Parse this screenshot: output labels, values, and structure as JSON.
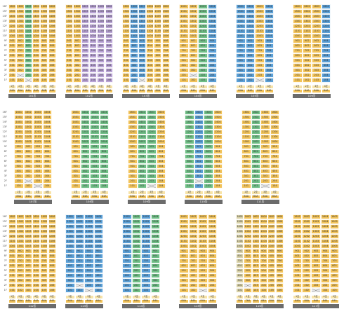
{
  "floor_labels": [
    "16F",
    "15F",
    "14F",
    "13F",
    "12F",
    "11F",
    "10F",
    "9F",
    "8F",
    "7F",
    "6F",
    "5F",
    "4F",
    "3F",
    "2F",
    "1F"
  ],
  "colors": {
    "y": "#f2c35a",
    "p": "#b9a3d6",
    "g": "#6fbf86",
    "b": "#5a9fd6",
    "l": "#d9d2a8",
    "w": "#f4f4f4",
    "x": "#e6e6e6"
  },
  "buildings": [
    {
      "name": "101동",
      "floors": 16,
      "lines": 6,
      "colors": [
        "y",
        "y",
        "g",
        "y",
        "y",
        "y"
      ],
      "summary": [
        "1호",
        "2호",
        "3호",
        "4호",
        "5호",
        "6호",
        "84A",
        "84A",
        "84A",
        "84A",
        "84B",
        "84B"
      ]
    },
    {
      "name": "102동",
      "floors": 16,
      "lines": 6,
      "colors": [
        "y",
        "y",
        "p",
        "p",
        "p",
        "p"
      ],
      "summary": [
        "1호",
        "2호",
        "3호",
        "4호",
        "5호",
        "6호",
        "84A",
        "84A",
        "84A",
        "84A",
        "84A",
        "84A"
      ]
    },
    {
      "name": "103동",
      "floors": 16,
      "lines": 6,
      "colors": [
        "y",
        "b",
        "b",
        "y",
        "y",
        "y"
      ],
      "summary": [
        "1호",
        "2호",
        "3호",
        "4호",
        "5호",
        "6호",
        "84A",
        "84A",
        "84A",
        "84A",
        "84A",
        "84A"
      ]
    },
    {
      "name": "104동",
      "floors": 16,
      "lines": 4,
      "colors": [
        "y",
        "y",
        "g",
        "b"
      ],
      "summary": [
        "1호",
        "2호",
        "3호",
        "4호",
        "84A",
        "84A",
        "84A",
        "84A"
      ]
    },
    {
      "name": "105동",
      "floors": 16,
      "lines": 4,
      "colors": [
        "b",
        "b",
        "y",
        "b"
      ],
      "summary": [
        "1호",
        "2호",
        "3호",
        "4호",
        "84A",
        "84A",
        "84A",
        "84A"
      ]
    },
    {
      "name": "106동",
      "floors": 16,
      "lines": 4,
      "colors": [
        "y",
        "y",
        "y",
        "b"
      ],
      "summary": [
        "1호",
        "2호",
        "3호",
        "4호",
        "84A",
        "84A",
        "84A",
        "84A"
      ]
    },
    {
      "name": "107동",
      "floors": 16,
      "lines": 4,
      "colors": [
        "y",
        "y",
        "y",
        "y"
      ],
      "summary": [
        "1호",
        "2호",
        "3호",
        "4호",
        "84A",
        "84A",
        "84A",
        "84A"
      ]
    },
    {
      "name": "108동",
      "floors": 16,
      "lines": 4,
      "colors": [
        "y",
        "g",
        "g",
        "g"
      ],
      "summary": [
        "1호",
        "2호",
        "3호",
        "4호",
        "84A",
        "84A",
        "84A",
        "84A"
      ]
    },
    {
      "name": "109동",
      "floors": 16,
      "lines": 4,
      "colors": [
        "y",
        "g",
        "g",
        "y"
      ],
      "summary": [
        "1호",
        "2호",
        "3호",
        "4호",
        "84A",
        "84A",
        "84A",
        "84A"
      ]
    },
    {
      "name": "110동",
      "floors": 16,
      "lines": 4,
      "colors": [
        "g",
        "b",
        "g",
        "y"
      ],
      "summary": [
        "1호",
        "2호",
        "3호",
        "4호",
        "84A",
        "84A",
        "84A",
        "84A"
      ]
    },
    {
      "name": "111동",
      "floors": 16,
      "lines": 4,
      "colors": [
        "y",
        "g",
        "y",
        "y"
      ],
      "summary": [
        "1호",
        "2호",
        "3호",
        "4호",
        "84A",
        "84A",
        "84A",
        "84A"
      ]
    },
    {
      "name": "112동",
      "floors": 16,
      "lines": 6,
      "colors": [
        "y",
        "y",
        "y",
        "y",
        "y",
        "y"
      ],
      "summary": [
        "1호",
        "2호",
        "3호",
        "4호",
        "5호",
        "6호",
        "84A",
        "84A",
        "84A",
        "84A",
        "84A",
        "84A"
      ]
    },
    {
      "name": "113동",
      "floors": 16,
      "lines": 4,
      "colors": [
        "b",
        "b",
        "b",
        "b"
      ],
      "summary": [
        "1호",
        "2호",
        "3호",
        "4호",
        "84A",
        "84A",
        "84A",
        "84A"
      ]
    },
    {
      "name": "114동",
      "floors": 16,
      "lines": 4,
      "colors": [
        "b",
        "g",
        "b",
        "g"
      ],
      "summary": [
        "1호",
        "2호",
        "3호",
        "4호",
        "84A",
        "84A",
        "84A",
        "84A"
      ]
    },
    {
      "name": "115동",
      "floors": 16,
      "lines": 4,
      "colors": [
        "y",
        "y",
        "y",
        "y"
      ],
      "summary": [
        "1호",
        "2호",
        "3호",
        "4호",
        "84A",
        "84A",
        "84A",
        "84A"
      ]
    },
    {
      "name": "116동",
      "floors": 16,
      "lines": 6,
      "colors": [
        "l",
        "y",
        "y",
        "y",
        "y",
        "y"
      ],
      "summary": [
        "1호",
        "2호",
        "3호",
        "4호",
        "5호",
        "6호",
        "76A",
        "76A",
        "84A",
        "84A",
        "84A",
        "84A"
      ]
    },
    {
      "name": "117동",
      "floors": 16,
      "lines": 5,
      "colors": [
        "y",
        "y",
        "y",
        "y",
        "y"
      ],
      "summary": [
        "1호",
        "2호",
        "3호",
        "4호",
        "5호",
        "84A",
        "84A",
        "84A",
        "84A",
        "84A"
      ]
    }
  ]
}
